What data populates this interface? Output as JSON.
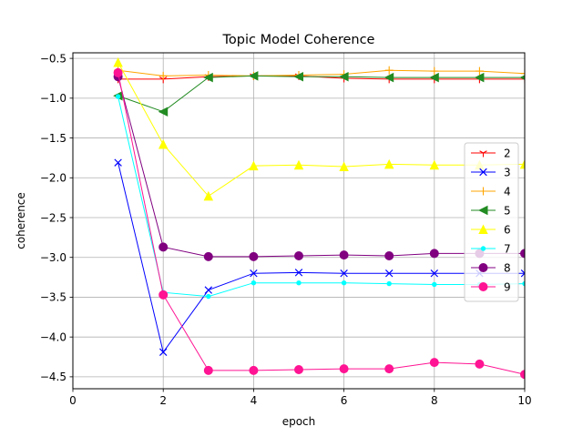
{
  "chart_data": {
    "type": "line",
    "title": "Topic Model Coherence",
    "xlabel": "epoch",
    "ylabel": "coherence",
    "xlim": [
      0,
      10
    ],
    "ylim": [
      -4.65,
      -0.43
    ],
    "xticks": [
      0,
      2,
      4,
      6,
      8,
      10
    ],
    "xtick_labels": [
      "0",
      "2",
      "4",
      "6",
      "8",
      "10"
    ],
    "yticks": [
      -0.5,
      -1.0,
      -1.5,
      -2.0,
      -2.5,
      -3.0,
      -3.5,
      -4.0,
      -4.5
    ],
    "ytick_labels": [
      "−0.5",
      "−1.0",
      "−1.5",
      "−2.0",
      "−2.5",
      "−3.0",
      "−3.5",
      "−4.0",
      "−4.5"
    ],
    "grid": true,
    "legend_position": "right",
    "x": [
      1,
      2,
      3,
      4,
      5,
      6,
      7,
      8,
      9,
      10
    ],
    "series": [
      {
        "name": "2",
        "color": "#ff0000",
        "marker": "tri_down",
        "values": [
          -0.76,
          -0.76,
          -0.73,
          -0.72,
          -0.72,
          -0.75,
          -0.76,
          -0.76,
          -0.76,
          -0.76
        ]
      },
      {
        "name": "3",
        "color": "#0000ff",
        "marker": "x",
        "values": [
          -1.81,
          -4.19,
          -3.41,
          -3.2,
          -3.19,
          -3.2,
          -3.2,
          -3.2,
          -3.2,
          -3.2
        ]
      },
      {
        "name": "4",
        "color": "#ffa500",
        "marker": "plus",
        "values": [
          -0.65,
          -0.72,
          -0.71,
          -0.72,
          -0.71,
          -0.7,
          -0.65,
          -0.66,
          -0.66,
          -0.69
        ]
      },
      {
        "name": "5",
        "color": "#228b22",
        "marker": "triangle_left",
        "values": [
          -0.97,
          -1.17,
          -0.74,
          -0.72,
          -0.73,
          -0.73,
          -0.74,
          -0.74,
          -0.74,
          -0.74
        ]
      },
      {
        "name": "6",
        "color": "#ffff00",
        "marker": "triangle_up",
        "values": [
          -0.55,
          -1.58,
          -2.23,
          -1.85,
          -1.84,
          -1.86,
          -1.83,
          -1.84,
          -1.84,
          -1.83
        ]
      },
      {
        "name": "7",
        "color": "#00ffff",
        "marker": "point",
        "values": [
          -0.98,
          -3.44,
          -3.49,
          -3.32,
          -3.32,
          -3.32,
          -3.33,
          -3.34,
          -3.34,
          -3.33
        ]
      },
      {
        "name": "8",
        "color": "#800080",
        "marker": "circle",
        "values": [
          -0.73,
          -2.87,
          -2.99,
          -2.99,
          -2.98,
          -2.97,
          -2.98,
          -2.95,
          -2.95,
          -2.95
        ]
      },
      {
        "name": "9",
        "color": "#ff1493",
        "marker": "circle",
        "values": [
          -0.68,
          -3.47,
          -4.42,
          -4.42,
          -4.41,
          -4.4,
          -4.4,
          -4.32,
          -4.34,
          -4.47
        ]
      }
    ]
  }
}
